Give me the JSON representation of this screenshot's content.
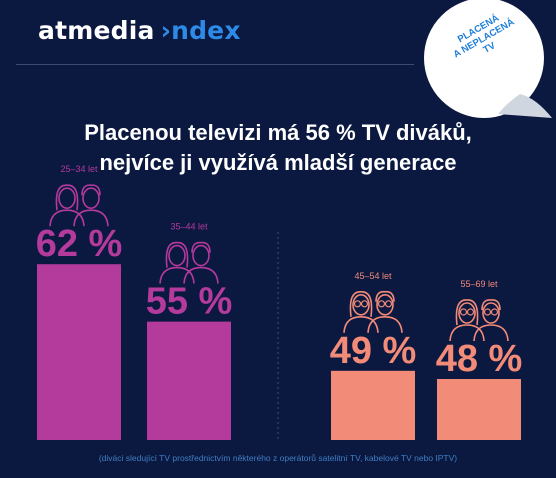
{
  "logo": {
    "brand": "atmedia",
    "index": "›ndex"
  },
  "sticker": {
    "line1": "PLACENÁ",
    "line2": "A NEPLACENÁ",
    "line3": "TV"
  },
  "headline": {
    "line1": "Placenou televizi má 56 % TV diváků,",
    "line2": "nejvíce ji využívá mladší generace"
  },
  "footnote": "(diváci sledující TV prostřednictvím některého z operátorů satelitní TV, kabelové TV nebo IPTV)",
  "colors": {
    "background": "#0b1840",
    "young": "#b43a9c",
    "older": "#f28b78",
    "accent": "#2d8ae6"
  },
  "chart_data": {
    "type": "bar",
    "categories": [
      "25–34 let",
      "35–44 let",
      "45–54 let",
      "55–69 let"
    ],
    "values": [
      62,
      55,
      49,
      48
    ],
    "value_labels": [
      "62 %",
      "55 %",
      "49 %",
      "48 %"
    ],
    "icons": [
      "couple-icon",
      "couple-icon",
      "couple-glasses-icon",
      "couple-glasses-icon"
    ],
    "colors": [
      "#b43a9c",
      "#b43a9c",
      "#f28b78",
      "#f28b78"
    ],
    "unit": "%",
    "ylim": [
      0,
      100
    ]
  }
}
